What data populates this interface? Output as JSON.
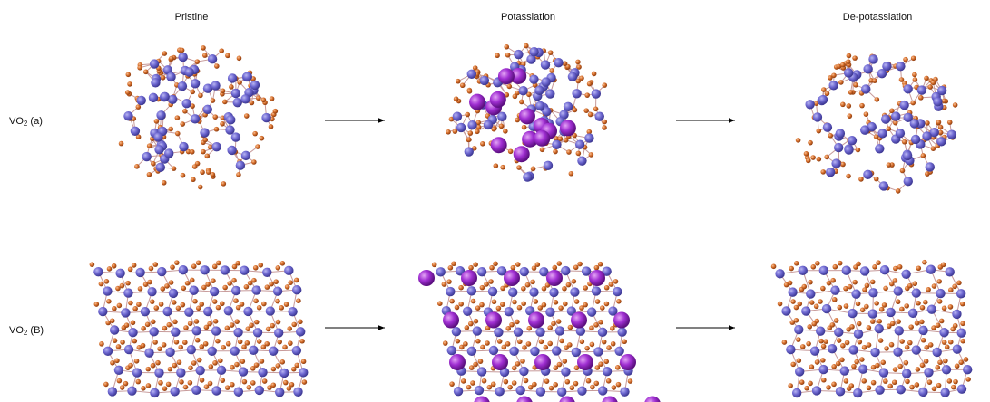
{
  "columns": [
    "Pristine",
    "Potassiation",
    "De-potassiation"
  ],
  "rows": [
    {
      "prefix": "VO",
      "sub": "2",
      "suffix": " (a)"
    },
    {
      "prefix": "VO",
      "sub": "2",
      "suffix": " (B)"
    }
  ]
}
